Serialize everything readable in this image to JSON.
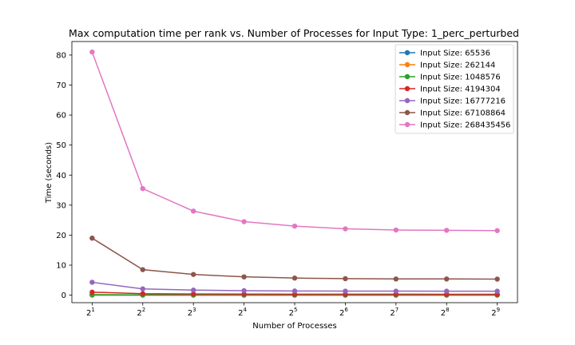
{
  "chart_data": {
    "type": "line",
    "title": "Max computation time per rank vs. Number of Processes for Input Type: 1_perc_perturbed",
    "xlabel": "Number of Processes",
    "ylabel": "Time (seconds)",
    "x": [
      2,
      4,
      8,
      16,
      32,
      64,
      128,
      256,
      512
    ],
    "x_scale": "log2",
    "x_tick_base": "2",
    "x_tick_exponents": [
      "1",
      "2",
      "3",
      "4",
      "5",
      "6",
      "7",
      "8",
      "9"
    ],
    "ylim": [
      -2.5,
      84.5
    ],
    "y_ticks": [
      0,
      10,
      20,
      30,
      40,
      50,
      60,
      70,
      80
    ],
    "y_tick_labels": [
      "0",
      "10",
      "20",
      "30",
      "40",
      "50",
      "60",
      "70",
      "80"
    ],
    "grid": false,
    "legend_position": "top-right",
    "series": [
      {
        "name": "Input Size: 65536",
        "color": "#1f77b4",
        "values": [
          0.01,
          0.01,
          0.01,
          0.01,
          0.01,
          0.01,
          0.01,
          0.01,
          0.01
        ]
      },
      {
        "name": "Input Size: 262144",
        "color": "#ff7f0e",
        "values": [
          0.05,
          0.03,
          0.02,
          0.02,
          0.02,
          0.02,
          0.02,
          0.02,
          0.02
        ]
      },
      {
        "name": "Input Size: 1048576",
        "color": "#2ca02c",
        "values": [
          0.2,
          0.1,
          0.08,
          0.07,
          0.07,
          0.07,
          0.07,
          0.07,
          0.07
        ]
      },
      {
        "name": "Input Size: 4194304",
        "color": "#d62728",
        "values": [
          1.0,
          0.5,
          0.4,
          0.35,
          0.33,
          0.32,
          0.32,
          0.31,
          0.31
        ]
      },
      {
        "name": "Input Size: 16777216",
        "color": "#9467bd",
        "values": [
          4.3,
          2.1,
          1.7,
          1.5,
          1.4,
          1.35,
          1.35,
          1.33,
          1.33
        ]
      },
      {
        "name": "Input Size: 67108864",
        "color": "#8c564b",
        "values": [
          19.0,
          8.5,
          6.9,
          6.1,
          5.7,
          5.5,
          5.4,
          5.4,
          5.35
        ]
      },
      {
        "name": "Input Size: 268435456",
        "color": "#e377c2",
        "values": [
          81.0,
          35.5,
          28.0,
          24.5,
          23.0,
          22.1,
          21.7,
          21.6,
          21.5
        ]
      }
    ]
  }
}
